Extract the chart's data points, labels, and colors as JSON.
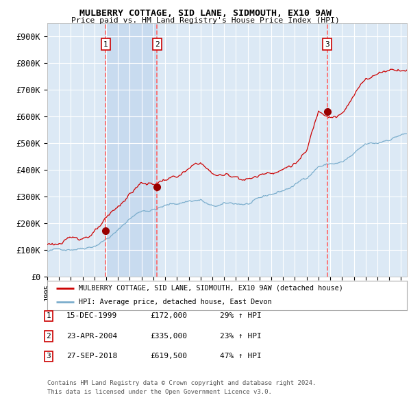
{
  "title": "MULBERRY COTTAGE, SID LANE, SIDMOUTH, EX10 9AW",
  "subtitle": "Price paid vs. HM Land Registry's House Price Index (HPI)",
  "background_color": "#ffffff",
  "plot_bg_color": "#dce9f5",
  "grid_color": "#ffffff",
  "ylim": [
    0,
    950000
  ],
  "yticks": [
    0,
    100000,
    200000,
    300000,
    400000,
    500000,
    600000,
    700000,
    800000,
    900000
  ],
  "ytick_labels": [
    "£0",
    "£100K",
    "£200K",
    "£300K",
    "£400K",
    "£500K",
    "£600K",
    "£700K",
    "£800K",
    "£900K"
  ],
  "sale_prices": [
    172000,
    335000,
    619500
  ],
  "sale_labels": [
    "1",
    "2",
    "3"
  ],
  "sale_year_floats": [
    1999.958,
    2004.31,
    2018.747
  ],
  "legend_line1": "MULBERRY COTTAGE, SID LANE, SIDMOUTH, EX10 9AW (detached house)",
  "legend_line2": "HPI: Average price, detached house, East Devon",
  "table_rows": [
    [
      "1",
      "15-DEC-1999",
      "£172,000",
      "29% ↑ HPI"
    ],
    [
      "2",
      "23-APR-2004",
      "£335,000",
      "23% ↑ HPI"
    ],
    [
      "3",
      "27-SEP-2018",
      "£619,500",
      "47% ↑ HPI"
    ]
  ],
  "footnote1": "Contains HM Land Registry data © Crown copyright and database right 2024.",
  "footnote2": "This data is licensed under the Open Government Licence v3.0.",
  "red_color": "#cc0000",
  "blue_color": "#7aadcc",
  "vline_color": "#ff6666",
  "shade_color": "#c5d9ee",
  "marker_color": "#990000",
  "x_start_year": 1995.0,
  "x_end_year": 2025.5,
  "hpi_years": [
    1995,
    1996,
    1997,
    1998,
    1999,
    2000,
    2001,
    2002,
    2003,
    2004,
    2005,
    2006,
    2007,
    2008,
    2009,
    2010,
    2011,
    2012,
    2013,
    2014,
    2015,
    2016,
    2017,
    2018,
    2019,
    2020,
    2021,
    2022,
    2023,
    2024,
    2025
  ],
  "hpi_vals": [
    95000,
    100000,
    108000,
    118000,
    133000,
    160000,
    190000,
    235000,
    265000,
    273000,
    285000,
    292000,
    305000,
    310000,
    280000,
    285000,
    285000,
    285000,
    295000,
    310000,
    325000,
    345000,
    375000,
    421000,
    430000,
    435000,
    460000,
    490000,
    490000,
    510000,
    530000
  ],
  "red_years": [
    1995,
    1996,
    1997,
    1998,
    1999,
    2000,
    2001,
    2002,
    2003,
    2004,
    2005,
    2006,
    2007,
    2008,
    2009,
    2010,
    2011,
    2012,
    2013,
    2014,
    2015,
    2016,
    2017,
    2018,
    2019,
    2020,
    2021,
    2022,
    2023,
    2024,
    2025
  ],
  "red_vals": [
    120000,
    127000,
    135000,
    148000,
    172000,
    207000,
    245000,
    300000,
    340000,
    335000,
    355000,
    365000,
    385000,
    410000,
    365000,
    360000,
    360000,
    355000,
    368000,
    390000,
    405000,
    430000,
    470000,
    619500,
    620000,
    630000,
    690000,
    760000,
    780000,
    800000,
    810000
  ]
}
